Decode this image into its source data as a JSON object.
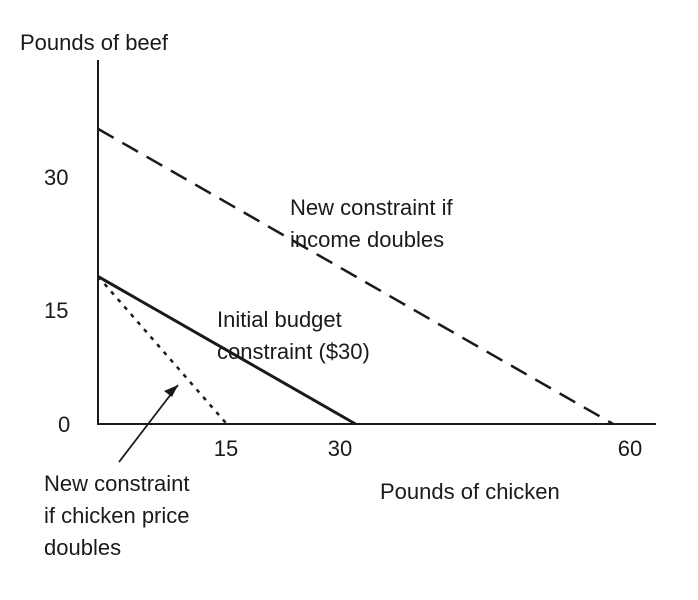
{
  "chart_data": {
    "type": "line",
    "xlabel": "Pounds of chicken",
    "ylabel": "Pounds of beef",
    "xlim": [
      0,
      65
    ],
    "ylim": [
      0,
      37
    ],
    "x_ticks": [
      "15",
      "30",
      "60"
    ],
    "y_ticks": [
      "0",
      "15",
      "30"
    ],
    "series": [
      {
        "name": "Initial budget constraint ($30)",
        "style": "solid",
        "points": [
          [
            0,
            15
          ],
          [
            30,
            0
          ]
        ]
      },
      {
        "name": "New constraint if income doubles",
        "style": "dashed",
        "points": [
          [
            0,
            30
          ],
          [
            60,
            0
          ]
        ]
      },
      {
        "name": "New constraint if chicken price doubles",
        "style": "dotted",
        "points": [
          [
            0,
            15
          ],
          [
            15,
            0
          ]
        ]
      }
    ],
    "annotations": {
      "income_line": [
        "New constraint if",
        "income doubles"
      ],
      "initial_line": [
        "Initial budget",
        "constraint ($30)"
      ],
      "chicken_price_line": [
        "New constraint",
        "if chicken price",
        "doubles"
      ]
    }
  }
}
